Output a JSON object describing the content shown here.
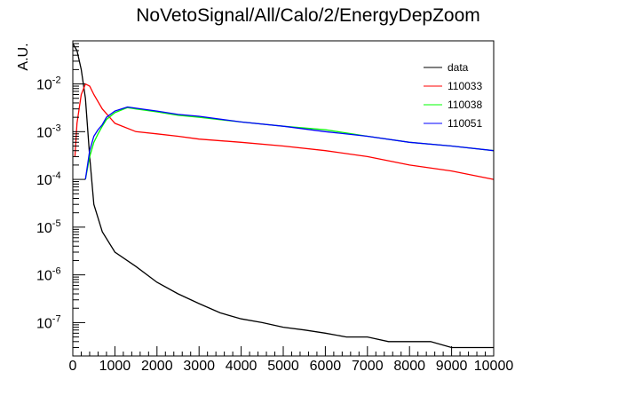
{
  "chart_data": {
    "type": "line",
    "title": "NoVetoSignal/All/Calo/2/EnergyDepZoom",
    "xlabel": "",
    "ylabel": "A.U.",
    "xlim": [
      0,
      10000
    ],
    "ylim": [
      2e-08,
      0.08
    ],
    "yscale": "log",
    "grid": false,
    "legend_position": "top-right",
    "x_tick_labels": [
      "0",
      "1000",
      "2000",
      "3000",
      "4000",
      "5000",
      "6000",
      "7000",
      "8000",
      "9000",
      "10000"
    ],
    "x_ticks": [
      0,
      1000,
      2000,
      3000,
      4000,
      5000,
      6000,
      7000,
      8000,
      9000,
      10000
    ],
    "y_ticks": [
      1e-07,
      1e-06,
      1e-05,
      0.0001,
      0.001,
      0.01
    ],
    "y_tick_labels": [
      {
        "base": "10",
        "exp": "-7"
      },
      {
        "base": "10",
        "exp": "-6"
      },
      {
        "base": "10",
        "exp": "-5"
      },
      {
        "base": "10",
        "exp": "-4"
      },
      {
        "base": "10",
        "exp": "-3"
      },
      {
        "base": "10",
        "exp": "-2"
      }
    ],
    "series": [
      {
        "name": "data",
        "color": "#000000",
        "x": [
          0,
          100,
          200,
          300,
          400,
          500,
          700,
          1000,
          1500,
          2000,
          2500,
          3000,
          3500,
          4000,
          4500,
          5000,
          5500,
          6000,
          6500,
          7000,
          7500,
          8000,
          8500,
          9000,
          9500,
          10000
        ],
        "y": [
          0.07,
          0.05,
          0.02,
          0.005,
          0.0003,
          3e-05,
          8e-06,
          3e-06,
          1.5e-06,
          7e-07,
          4e-07,
          2.5e-07,
          1.6e-07,
          1.2e-07,
          1e-07,
          8e-08,
          7e-08,
          6e-08,
          5e-08,
          5e-08,
          4e-08,
          4e-08,
          4e-08,
          3e-08,
          3e-08,
          3e-08
        ]
      },
      {
        "name": "110033",
        "color": "#ff0000",
        "x": [
          50,
          100,
          200,
          300,
          400,
          500,
          700,
          1000,
          1500,
          2000,
          2500,
          3000,
          4000,
          5000,
          6000,
          7000,
          8000,
          9000,
          10000
        ],
        "y": [
          0.0003,
          0.0015,
          0.006,
          0.01,
          0.009,
          0.006,
          0.003,
          0.0015,
          0.001,
          0.0009,
          0.0008,
          0.0007,
          0.0006,
          0.0005,
          0.0004,
          0.0003,
          0.0002,
          0.00015,
          0.0001
        ]
      },
      {
        "name": "110038",
        "color": "#00ff00",
        "x": [
          300,
          400,
          500,
          600,
          700,
          800,
          1000,
          1300,
          1500,
          2000,
          2500,
          3000,
          4000,
          5000,
          6000,
          7000,
          8000,
          9000,
          10000
        ],
        "y": [
          0.0001,
          0.0003,
          0.0006,
          0.0009,
          0.0013,
          0.0018,
          0.0025,
          0.0032,
          0.003,
          0.0026,
          0.0022,
          0.002,
          0.0016,
          0.0013,
          0.0011,
          0.0008,
          0.0006,
          0.0005,
          0.0004
        ]
      },
      {
        "name": "110051",
        "color": "#0000ff",
        "x": [
          300,
          400,
          500,
          600,
          700,
          800,
          1000,
          1300,
          1500,
          2000,
          2500,
          3000,
          4000,
          5000,
          6000,
          7000,
          8000,
          9000,
          10000
        ],
        "y": [
          0.0001,
          0.0004,
          0.0008,
          0.0011,
          0.0014,
          0.002,
          0.0027,
          0.0033,
          0.0031,
          0.0027,
          0.0023,
          0.0021,
          0.0016,
          0.0013,
          0.001,
          0.0008,
          0.0006,
          0.0005,
          0.0004
        ]
      }
    ]
  }
}
